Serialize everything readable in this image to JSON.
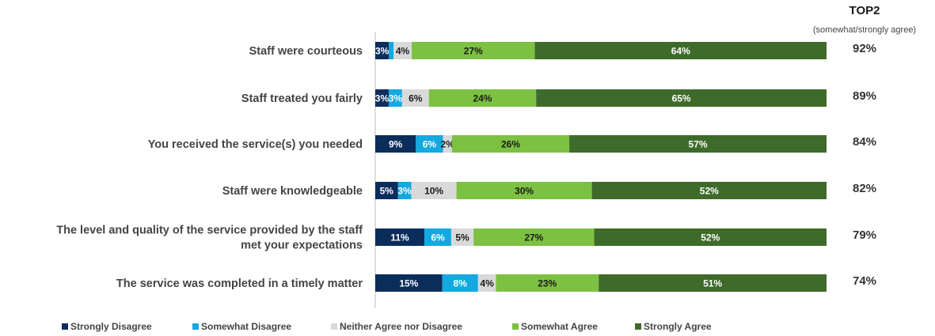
{
  "chart_data": {
    "type": "bar",
    "orientation": "horizontal",
    "stacked": true,
    "xlim": [
      0,
      100
    ],
    "categories": [
      "Staff were courteous",
      "Staff treated you fairly",
      "You received the service(s) you needed",
      "Staff were knowledgeable",
      "The level and quality of the service provided by the staff met your expectations",
      "The service was completed in a timely matter"
    ],
    "category_lines": [
      [
        "Staff were courteous"
      ],
      [
        "Staff treated you fairly"
      ],
      [
        "You received the service(s) you needed"
      ],
      [
        "Staff were knowledgeable"
      ],
      [
        "The level and quality of the service provided by the staff",
        "met your expectations"
      ],
      [
        "The service was completed in a timely matter"
      ]
    ],
    "series": [
      {
        "name": "Strongly Disagree",
        "color": "#0b2d5b",
        "values": [
          3,
          3,
          9,
          5,
          11,
          15
        ],
        "labels": [
          "3%",
          "3%",
          "9%",
          "5%",
          "11%",
          "15%"
        ]
      },
      {
        "name": "Somewhat Disagree",
        "color": "#13a8e0",
        "values": [
          1,
          3,
          6,
          3,
          6,
          8
        ],
        "labels": [
          "",
          "3%",
          "6%",
          "3%",
          "6%",
          "8%"
        ]
      },
      {
        "name": "Neither Agree nor Disagree",
        "color": "#d9d9d9",
        "values": [
          4,
          6,
          2,
          10,
          5,
          4
        ],
        "labels": [
          "4%",
          "6%",
          "2%",
          "10%",
          "5%",
          "4%"
        ]
      },
      {
        "name": "Somewhat Agree",
        "color": "#7cc142",
        "values": [
          27,
          24,
          26,
          30,
          27,
          23
        ],
        "labels": [
          "27%",
          "24%",
          "26%",
          "30%",
          "27%",
          "23%"
        ]
      },
      {
        "name": "Strongly Agree",
        "color": "#3e6b2a",
        "values": [
          64,
          65,
          57,
          52,
          52,
          51
        ],
        "labels": [
          "64%",
          "65%",
          "57%",
          "52%",
          "52%",
          "51%"
        ]
      }
    ],
    "top2": {
      "title": "TOP2",
      "subtitle": "(somewhat/strongly agree)",
      "values": [
        "92%",
        "89%",
        "84%",
        "82%",
        "79%",
        "74%"
      ]
    },
    "legend_position": "bottom-left",
    "grid": false
  }
}
